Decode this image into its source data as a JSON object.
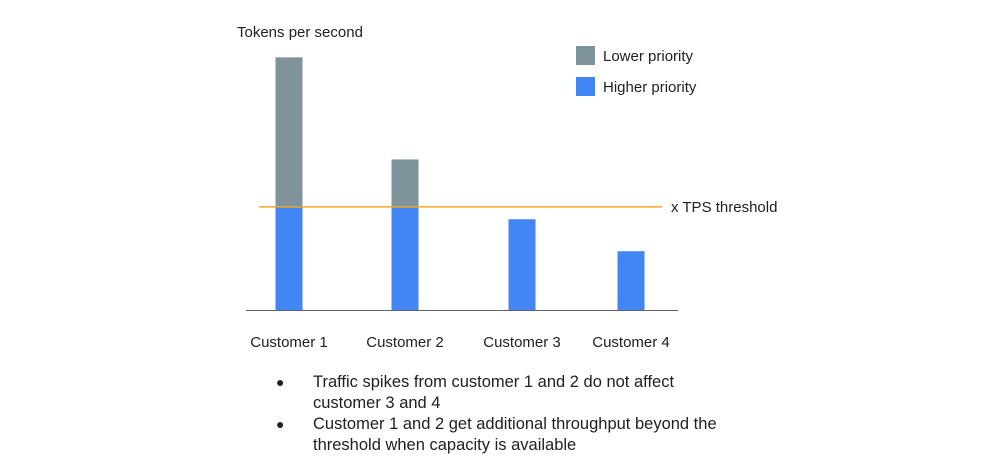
{
  "chart_data": {
    "type": "bar",
    "stacked": true,
    "ylabel": "Tokens per second",
    "categories": [
      "Customer 1",
      "Customer 2",
      "Customer 3",
      "Customer 4"
    ],
    "series": [
      {
        "name": "Higher priority",
        "color": "#4285f4",
        "values": [
          100,
          100,
          88,
          57
        ]
      },
      {
        "name": "Lower priority",
        "color": "#7f939b",
        "values": [
          145,
          46,
          0,
          0
        ]
      }
    ],
    "threshold": {
      "value": 100,
      "label": "x TPS threshold",
      "color": "#f5a623"
    },
    "ylim": [
      0,
      256
    ],
    "legend_position": "top-right",
    "grid": false
  },
  "notes": [
    {
      "bullet": "●",
      "text": "Traffic spikes from customer 1 and 2 do not affect customer 3 and 4"
    },
    {
      "bullet": "●",
      "text": "Customer 1 and 2 get additional throughput beyond the threshold when capacity is available"
    }
  ]
}
